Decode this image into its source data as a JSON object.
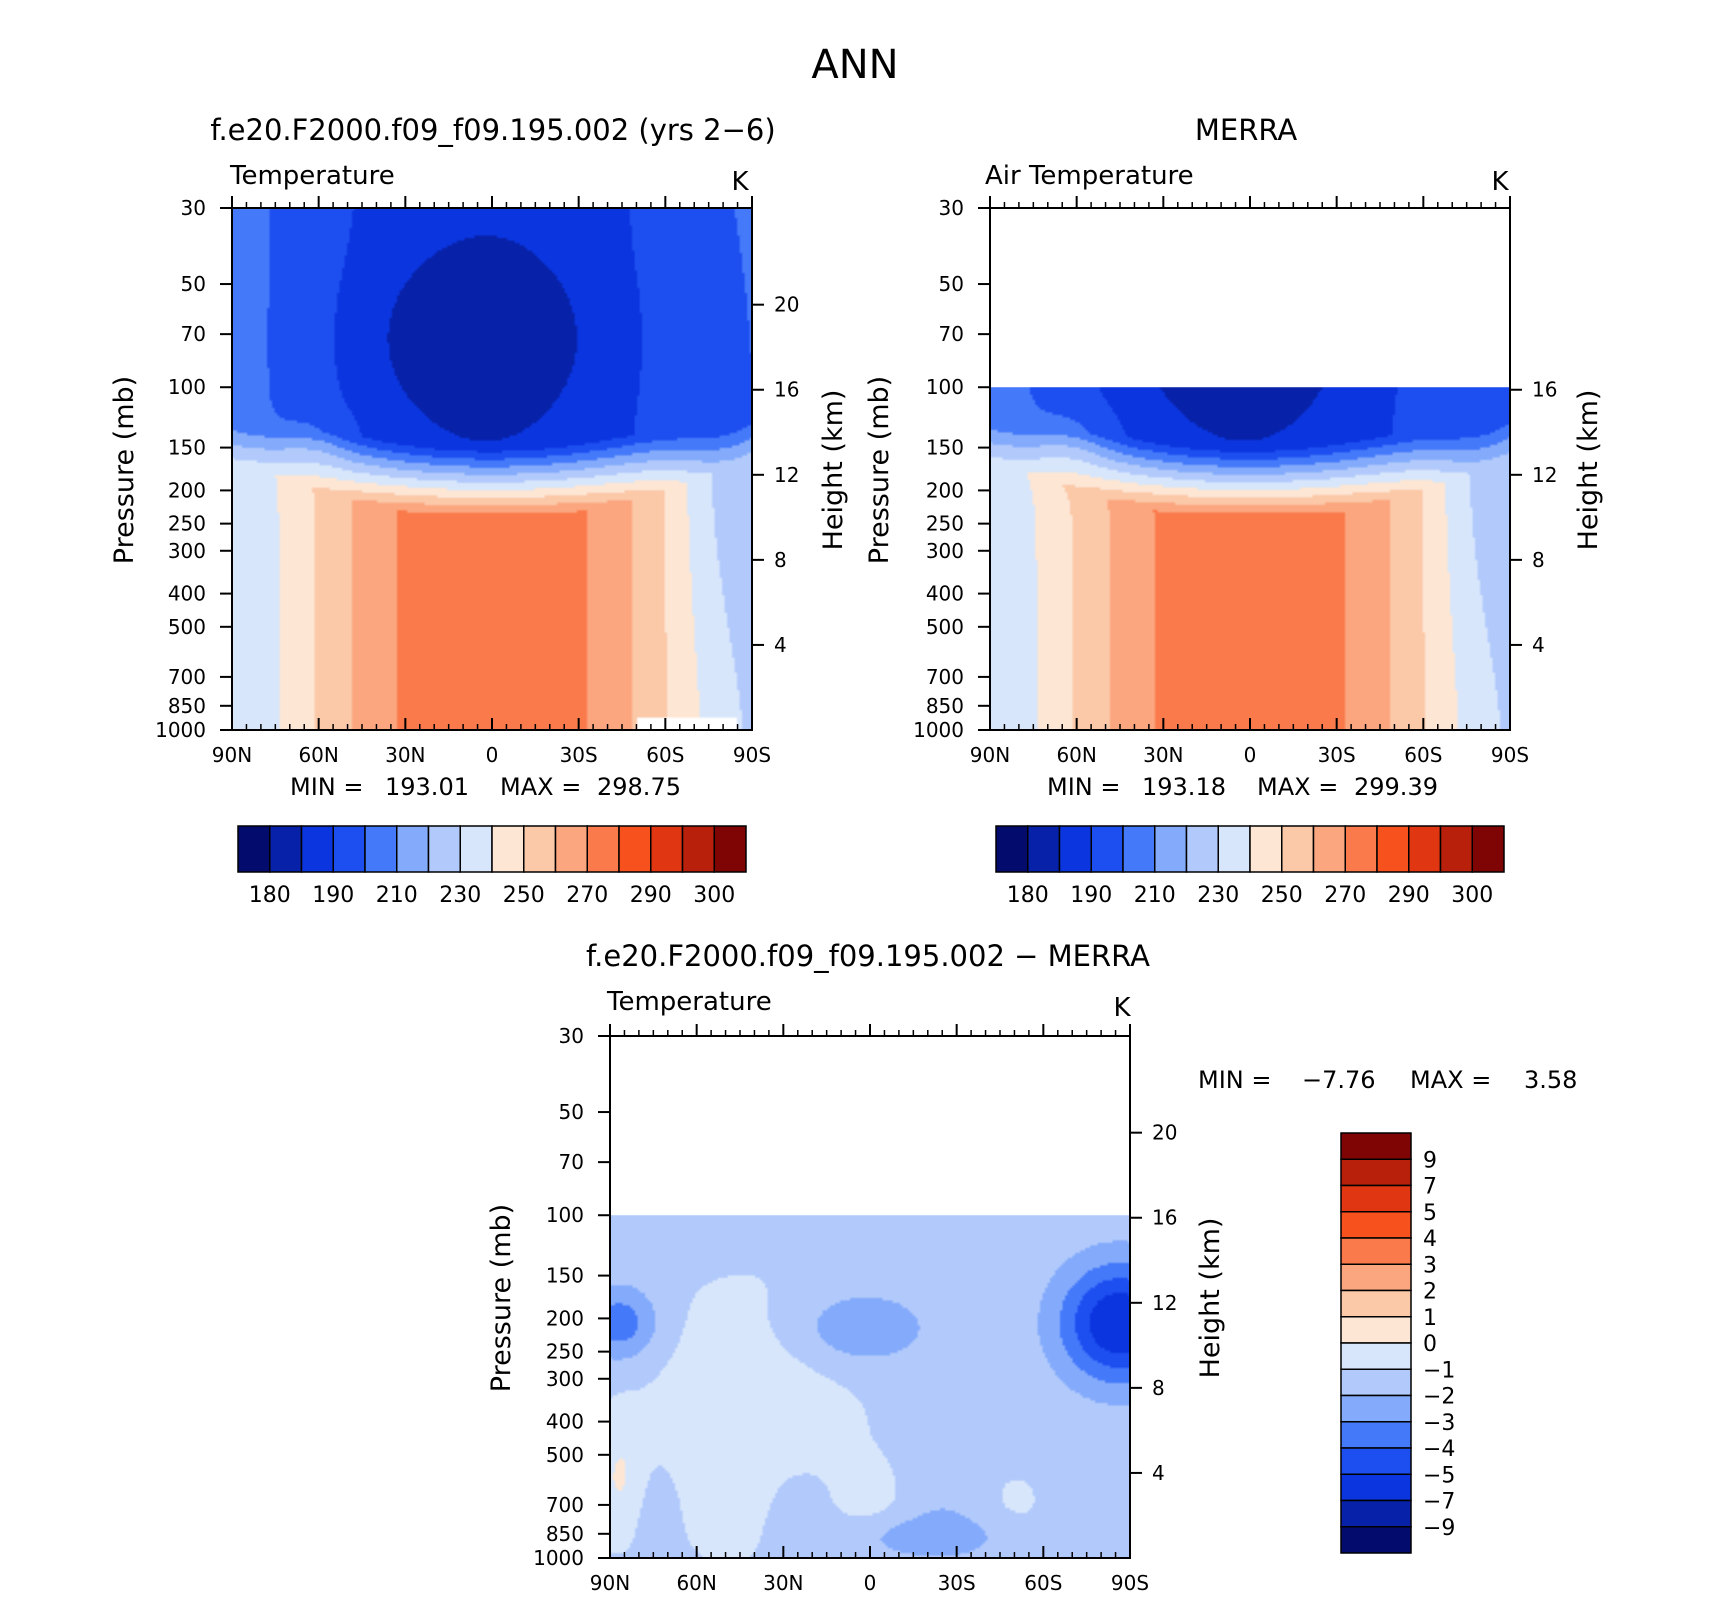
{
  "figure": {
    "title": "ANN"
  },
  "chart_data": [
    {
      "type": "heatmap",
      "title": "f.e20.F2000.f09_f09.195.002 (yrs 2−6)",
      "variable": "Temperature",
      "units": "K",
      "ylabel": "Pressure (mb)",
      "ylabel_right": "Height (km)",
      "x_ticks": [
        "90N",
        "60N",
        "30N",
        "0",
        "30S",
        "60S",
        "90S"
      ],
      "y_ticks": [
        "30",
        "50",
        "70",
        "100",
        "150",
        "200",
        "250",
        "300",
        "400",
        "500",
        "700",
        "850",
        "1000"
      ],
      "height_ticks": [
        "20",
        "16",
        "12",
        "8",
        "4"
      ],
      "ylim_mb": [
        1000,
        30
      ],
      "data_top_mb": 30,
      "stats": {
        "min_label": "MIN =",
        "min": "193.01",
        "max_label": "MAX =",
        "max": "298.75"
      },
      "colorbar": {
        "orientation": "horizontal",
        "colors": [
          "#030c6c",
          "#0722a8",
          "#0b35df",
          "#1d4ff0",
          "#4479fa",
          "#84abfb",
          "#b2cafb",
          "#d7e6fb",
          "#fde6d4",
          "#fbc8a8",
          "#fba67f",
          "#fa7a4b",
          "#f7521e",
          "#e03612",
          "#b8200c",
          "#7f0404"
        ],
        "labels": [
          "180",
          "190",
          "210",
          "230",
          "250",
          "270",
          "290",
          "300"
        ]
      },
      "levels": [
        190,
        200,
        210,
        220,
        230,
        240,
        250,
        260,
        270,
        280,
        290
      ]
    },
    {
      "type": "heatmap",
      "title": "MERRA",
      "variable": "Air Temperature",
      "units": "K",
      "ylabel": "Pressure (mb)",
      "ylabel_right": "Height (km)",
      "x_ticks": [
        "90N",
        "60N",
        "30N",
        "0",
        "30S",
        "60S",
        "90S"
      ],
      "y_ticks": [
        "30",
        "50",
        "70",
        "100",
        "150",
        "200",
        "250",
        "300",
        "400",
        "500",
        "700",
        "850",
        "1000"
      ],
      "height_ticks": [
        "16",
        "12",
        "8",
        "4"
      ],
      "ylim_mb": [
        1000,
        30
      ],
      "data_top_mb": 100,
      "stats": {
        "min_label": "MIN =",
        "min": "193.18",
        "max_label": "MAX =",
        "max": "299.39"
      },
      "colorbar": {
        "orientation": "horizontal",
        "colors": [
          "#030c6c",
          "#0722a8",
          "#0b35df",
          "#1d4ff0",
          "#4479fa",
          "#84abfb",
          "#b2cafb",
          "#d7e6fb",
          "#fde6d4",
          "#fbc8a8",
          "#fba67f",
          "#fa7a4b",
          "#f7521e",
          "#e03612",
          "#b8200c",
          "#7f0404"
        ],
        "labels": [
          "180",
          "190",
          "210",
          "230",
          "250",
          "270",
          "290",
          "300"
        ]
      },
      "levels": [
        190,
        200,
        210,
        220,
        230,
        240,
        250,
        260,
        270,
        280,
        290
      ]
    },
    {
      "type": "heatmap",
      "title": "f.e20.F2000.f09_f09.195.002 − MERRA",
      "variable": "Temperature",
      "units": "K",
      "ylabel": "Pressure (mb)",
      "ylabel_right": "Height (km)",
      "x_ticks": [
        "90N",
        "60N",
        "30N",
        "0",
        "30S",
        "60S",
        "90S"
      ],
      "y_ticks": [
        "30",
        "50",
        "70",
        "100",
        "150",
        "200",
        "250",
        "300",
        "400",
        "500",
        "700",
        "850",
        "1000"
      ],
      "height_ticks": [
        "20",
        "16",
        "12",
        "8",
        "4"
      ],
      "ylim_mb": [
        1000,
        30
      ],
      "data_top_mb": 100,
      "stats": {
        "min_label": "MIN =",
        "min": "−7.76",
        "max_label": "MAX =",
        "max": "3.58"
      },
      "colorbar": {
        "orientation": "vertical",
        "colors": [
          "#7f0404",
          "#b8200c",
          "#e03612",
          "#f7521e",
          "#fa7a4b",
          "#fba67f",
          "#fbc8a8",
          "#fde6d4",
          "#d7e6fb",
          "#b2cafb",
          "#84abfb",
          "#4479fa",
          "#1d4ff0",
          "#0b35df",
          "#0722a8",
          "#030c6c"
        ],
        "labels": [
          "9",
          "7",
          "5",
          "4",
          "3",
          "2",
          "1",
          "0",
          "−1",
          "−2",
          "−3",
          "−4",
          "−5",
          "−7",
          "−9"
        ]
      },
      "levels": [
        -9,
        -7,
        -5,
        -4,
        -3,
        -2,
        -1,
        0,
        1,
        2,
        3,
        4,
        5,
        7,
        9
      ]
    }
  ]
}
